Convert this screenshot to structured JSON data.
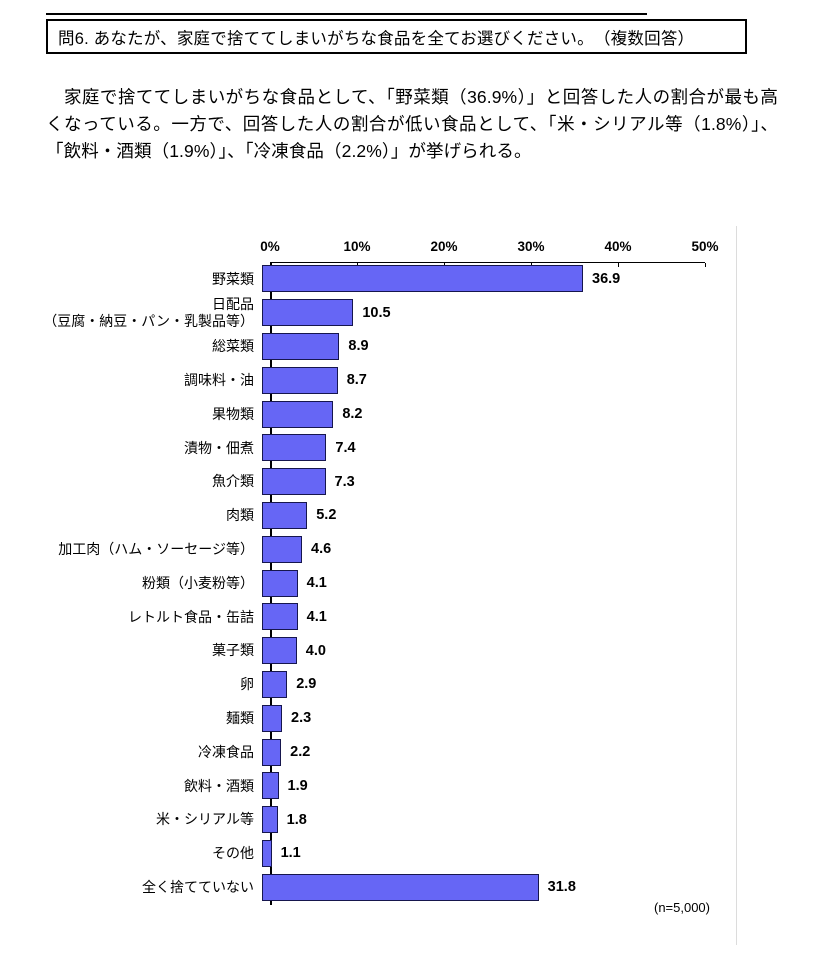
{
  "title_box": {
    "text": "問6. あなたが、家庭で捨ててしまいがちな食品を全てお選びください。　（複数回答）"
  },
  "summary": {
    "text": "　家庭で捨ててしまいがちな食品として、「野菜類（36.9%）」と回答した人の割合が最も高くなっている。一方で、回答した人の割合が低い食品として、「米・シリアル等（1.8%）」、「飲料・酒類（1.9%）」、「冷凍食品（2.2%）」が挙げられる。"
  },
  "chart_data": {
    "type": "bar",
    "orientation": "horizontal",
    "title": "",
    "xlabel": "",
    "ylabel": "",
    "xlim": [
      0,
      50
    ],
    "x_ticks": [
      "0%",
      "10%",
      "20%",
      "30%",
      "40%",
      "50%"
    ],
    "grid": false,
    "legend": false,
    "categories": [
      "野菜類",
      "日配品\n（豆腐・納豆・パン・乳製品等）",
      "総菜類",
      "調味料・油",
      "果物類",
      "漬物・佃煮",
      "魚介類",
      "肉類",
      "加工肉（ハム・ソーセージ等）",
      "粉類（小麦粉等）",
      "レトルト食品・缶詰",
      "菓子類",
      "卵",
      "麺類",
      "冷凍食品",
      "飲料・酒類",
      "米・シリアル等",
      "その他",
      "全く捨てていない"
    ],
    "values": [
      36.9,
      10.5,
      8.9,
      8.7,
      8.2,
      7.4,
      7.3,
      5.2,
      4.6,
      4.1,
      4.1,
      4.0,
      2.9,
      2.3,
      2.2,
      1.9,
      1.8,
      1.1,
      31.8
    ],
    "value_labels": [
      "36.9",
      "10.5",
      "8.9",
      "8.7",
      "8.2",
      "7.4",
      "7.3",
      "5.2",
      "4.6",
      "4.1",
      "4.1",
      "4.0",
      "2.9",
      "2.3",
      "2.2",
      "1.9",
      "1.8",
      "1.1",
      "31.8"
    ],
    "note": "(n=5,000)",
    "colors": {
      "bar_fill": "#6666f5",
      "bar_border": "#16164d",
      "axis": "#000000"
    }
  }
}
